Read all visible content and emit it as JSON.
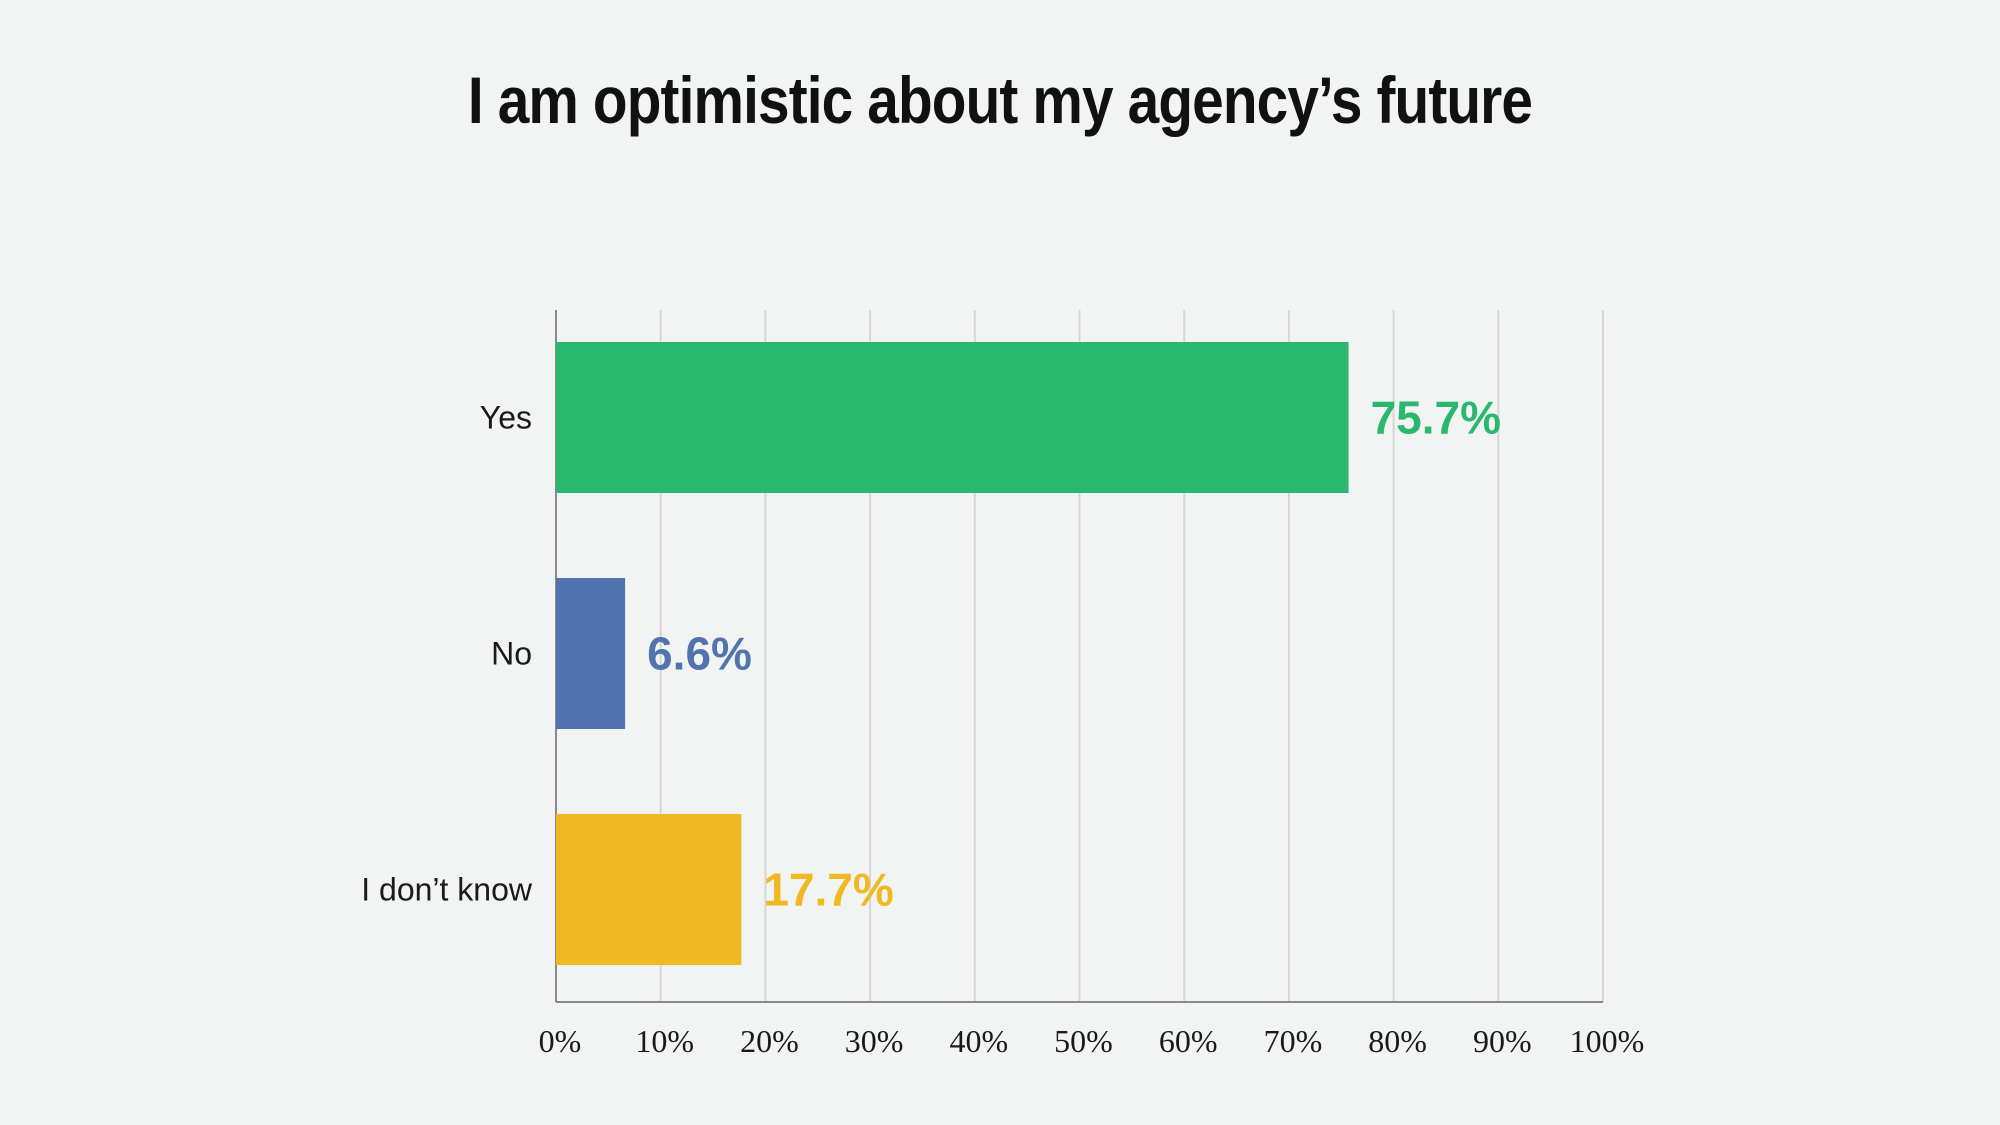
{
  "chart_data": {
    "type": "bar",
    "orientation": "horizontal",
    "title": "I am optimistic about my agency’s future",
    "categories": [
      "Yes",
      "No",
      "I don’t know"
    ],
    "values": [
      75.7,
      6.6,
      17.7
    ],
    "value_labels": [
      "75.7%",
      "6.6%",
      "17.7%"
    ],
    "colors": [
      "#2ab86f",
      "#5274ae",
      "#f0b921"
    ],
    "xlim": [
      0,
      100
    ],
    "x_ticks": [
      0,
      10,
      20,
      30,
      40,
      50,
      60,
      70,
      80,
      90,
      100
    ],
    "x_tick_labels": [
      "0%",
      "10%",
      "20%",
      "30%",
      "40%",
      "50%",
      "60%",
      "70%",
      "80%",
      "90%",
      "100%"
    ],
    "grid": true,
    "xlabel": "",
    "ylabel": ""
  }
}
